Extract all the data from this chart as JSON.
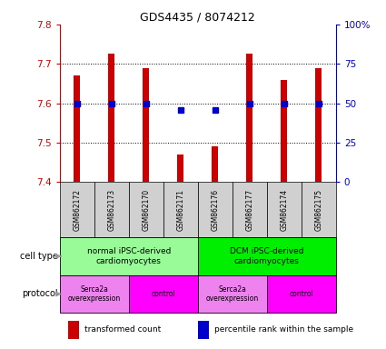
{
  "title": "GDS4435 / 8074212",
  "samples": [
    "GSM862172",
    "GSM862173",
    "GSM862170",
    "GSM862171",
    "GSM862176",
    "GSM862177",
    "GSM862174",
    "GSM862175"
  ],
  "transformed_count": [
    7.67,
    7.725,
    7.69,
    7.47,
    7.49,
    7.725,
    7.66,
    7.69
  ],
  "percentile_rank_y": [
    7.6,
    7.6,
    7.6,
    7.584,
    7.584,
    7.6,
    7.6,
    7.6
  ],
  "ylim": [
    7.4,
    7.8
  ],
  "yticks_left": [
    7.4,
    7.5,
    7.6,
    7.7,
    7.8
  ],
  "yticks_right_vals": [
    7.4,
    7.5,
    7.6,
    7.7,
    7.8
  ],
  "yticks_right_labels": [
    "0",
    "25",
    "50",
    "75",
    "100%"
  ],
  "bar_color": "#cc0000",
  "dot_color": "#0000cc",
  "bar_bottom": 7.4,
  "grid_yticks": [
    7.5,
    7.6,
    7.7
  ],
  "left_tick_color": "#cc0000",
  "right_tick_color": "#0000cc",
  "sample_bg": "#d0d0d0",
  "cell_type_groups": [
    {
      "label": "normal iPSC-derived\ncardiomyocytes",
      "cols": [
        0,
        1,
        2,
        3
      ],
      "color": "#98fb98"
    },
    {
      "label": "DCM iPSC-derived\ncardiomyocytes",
      "cols": [
        4,
        5,
        6,
        7
      ],
      "color": "#00ee00"
    }
  ],
  "protocol_groups": [
    {
      "label": "Serca2a\noverexpression",
      "cols": [
        0,
        1
      ],
      "color": "#ee82ee"
    },
    {
      "label": "control",
      "cols": [
        2,
        3
      ],
      "color": "#ff00ff"
    },
    {
      "label": "Serca2a\noverexpression",
      "cols": [
        4,
        5
      ],
      "color": "#ee82ee"
    },
    {
      "label": "control",
      "cols": [
        6,
        7
      ],
      "color": "#ff00ff"
    }
  ],
  "cell_type_label": "cell type",
  "protocol_label": "protocol",
  "arrow_color": "#999999",
  "legend_items": [
    {
      "color": "#cc0000",
      "label": "transformed count"
    },
    {
      "color": "#0000cc",
      "label": "percentile rank within the sample"
    }
  ]
}
